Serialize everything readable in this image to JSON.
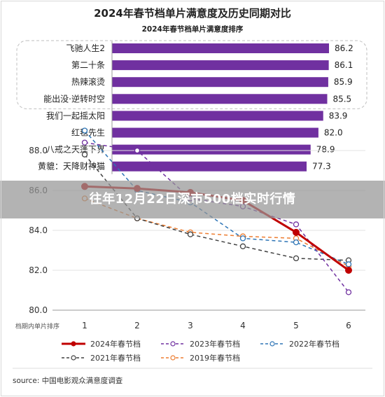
{
  "chart_data": [
    {
      "type": "bar",
      "title": "2024年春节档单片满意度及历史同期对比",
      "subtitle": "2024年春节档单片满意度排序",
      "orientation": "horizontal",
      "categories": [
        "飞驰人生2",
        "第二十条",
        "热辣滚烫",
        "能出没·逆转时空",
        "我们一起摇太阳",
        "红毯先生",
        "八戒之天蓬下界",
        "黄貔：天降财神猫"
      ],
      "values": [
        86.2,
        86.1,
        85.9,
        85.5,
        83.9,
        82.0,
        78.9,
        77.3
      ],
      "value_labels": [
        "86.2",
        "86.1",
        "85.9",
        "85.5",
        "83.9",
        "82.0",
        "78.9",
        "77.3"
      ],
      "bar_color": "#7030a0",
      "highlight_top": 4
    },
    {
      "type": "line",
      "xlabel": "档期内单片排序",
      "x": [
        "1",
        "2",
        "3",
        "4",
        "5",
        "6"
      ],
      "y_ticks": [
        "80.0",
        "82.0",
        "84.0",
        "86.0",
        "88.0"
      ],
      "ylim": [
        80,
        89.5
      ],
      "series": [
        {
          "name": "2024年春节档",
          "color": "#c00000",
          "dash": "",
          "width": 3,
          "values": [
            86.2,
            86.1,
            85.9,
            85.5,
            83.9,
            82.0
          ]
        },
        {
          "name": "2023年春节档",
          "color": "#7030a0",
          "dash": "5,4",
          "width": 1.5,
          "values": [
            88.4,
            88.0,
            85.6,
            85.2,
            84.3,
            80.9
          ]
        },
        {
          "name": "2022年春节档",
          "color": "#2e75b6",
          "dash": "5,4",
          "width": 1.5,
          "values": [
            89.0,
            86.0,
            85.4,
            83.6,
            83.4,
            82.3
          ]
        },
        {
          "name": "2021年春节档",
          "color": "#404040",
          "dash": "5,4",
          "width": 1.5,
          "values": [
            87.8,
            84.6,
            83.8,
            83.2,
            82.6,
            82.5
          ]
        },
        {
          "name": "2019年春节档",
          "color": "#ed7d31",
          "dash": "5,4",
          "width": 1.5,
          "values": [
            85.6,
            84.6,
            83.9,
            83.7,
            83.6,
            82.2
          ]
        }
      ]
    }
  ],
  "overlay": {
    "banner_text": "往年12月22日深市500档实时行情"
  },
  "source_text": "source: 中国电影观众满意度调查"
}
